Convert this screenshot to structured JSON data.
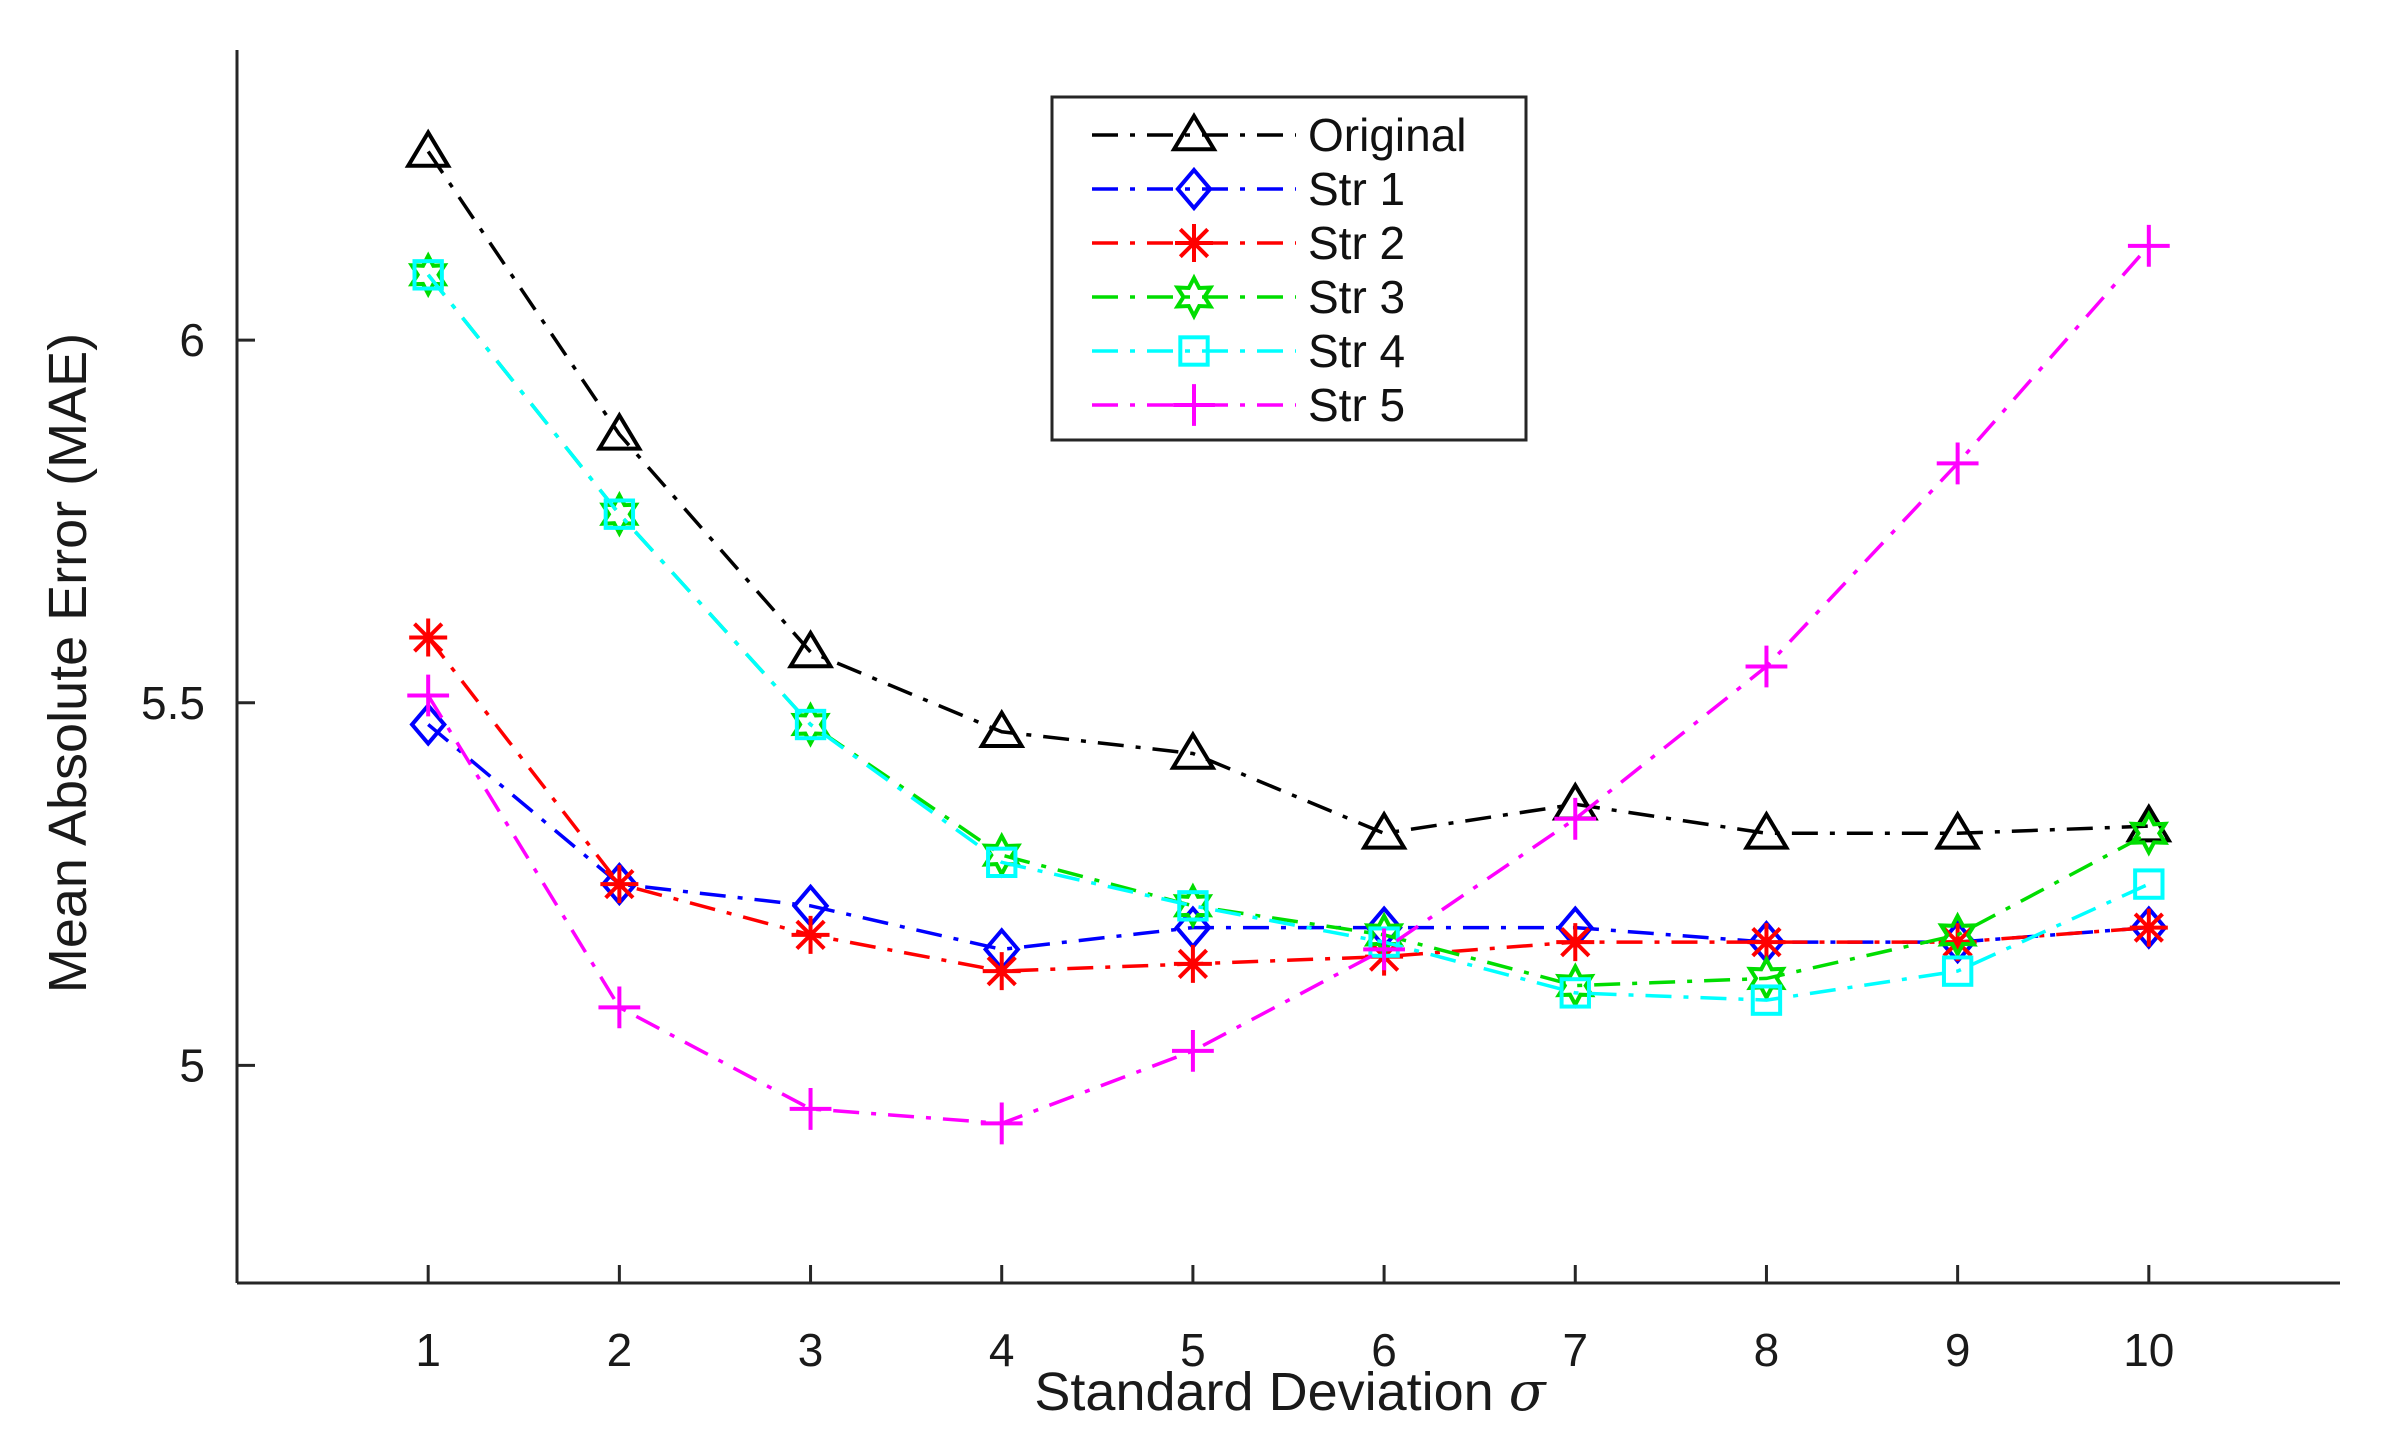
{
  "chart_data": {
    "type": "line",
    "title": "",
    "xlabel": "Standard Deviation",
    "xlabel_symbol": "σ",
    "ylabel": "Mean Absolute Error (MAE)",
    "x": [
      1,
      2,
      3,
      4,
      5,
      6,
      7,
      8,
      9,
      10
    ],
    "xticks": [
      "1",
      "2",
      "3",
      "4",
      "5",
      "6",
      "7",
      "8",
      "9",
      "10"
    ],
    "yticks": [
      {
        "value": 5,
        "label": "5"
      },
      {
        "value": 5.5,
        "label": "5.5"
      },
      {
        "value": 6,
        "label": "6"
      }
    ],
    "xlim": [
      0,
      11
    ],
    "ylim": [
      4.7,
      6.4
    ],
    "grid": false,
    "legend_position": "top-center",
    "series": [
      {
        "name": "Original",
        "color": "#000000",
        "marker": "triangle",
        "values": [
          6.26,
          5.87,
          5.57,
          5.46,
          5.43,
          5.32,
          5.36,
          5.32,
          5.32,
          5.33
        ]
      },
      {
        "name": "Str 1",
        "color": "#0000ff",
        "marker": "diamond",
        "values": [
          5.47,
          5.25,
          5.22,
          5.16,
          5.19,
          5.19,
          5.19,
          5.17,
          5.17,
          5.19
        ]
      },
      {
        "name": "Str 2",
        "color": "#ff0000",
        "marker": "asterisk",
        "values": [
          5.59,
          5.25,
          5.18,
          5.13,
          5.14,
          5.15,
          5.17,
          5.17,
          5.17,
          5.19
        ]
      },
      {
        "name": "Str 3",
        "color": "#00dd00",
        "marker": "hexagram",
        "values": [
          6.09,
          5.76,
          5.47,
          5.29,
          5.22,
          5.18,
          5.11,
          5.12,
          5.18,
          5.32
        ]
      },
      {
        "name": "Str 4",
        "color": "#00ffff",
        "marker": "square",
        "values": [
          6.09,
          5.76,
          5.47,
          5.28,
          5.22,
          5.17,
          5.1,
          5.09,
          5.13,
          5.25
        ]
      },
      {
        "name": "Str 5",
        "color": "#ff00ff",
        "marker": "plus",
        "values": [
          5.51,
          5.08,
          4.94,
          4.92,
          5.02,
          5.16,
          5.34,
          5.55,
          5.83,
          6.13
        ]
      }
    ]
  }
}
